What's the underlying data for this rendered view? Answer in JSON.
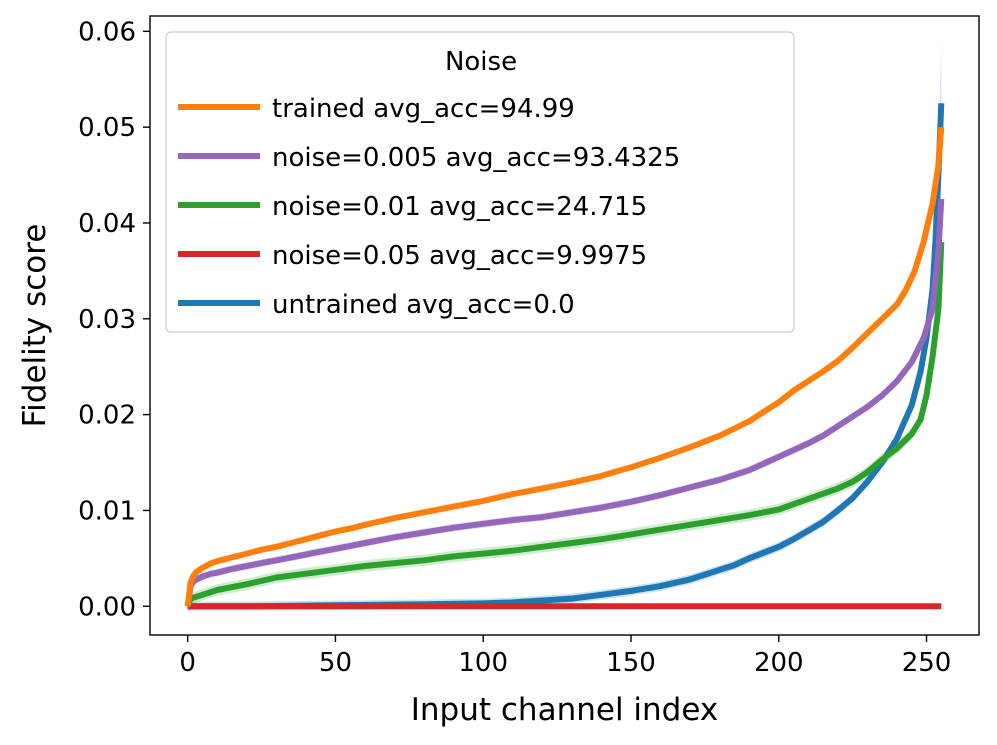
{
  "chart_data": {
    "type": "line",
    "title": "",
    "xlabel": "Input channel index",
    "ylabel": "Fidelity score",
    "xlim": [
      -12.75,
      267.75
    ],
    "ylim": [
      -0.003,
      0.0616
    ],
    "xticks": [
      0,
      50,
      100,
      150,
      200,
      250
    ],
    "xtick_labels": [
      "0",
      "50",
      "100",
      "150",
      "200",
      "250"
    ],
    "yticks": [
      0.0,
      0.01,
      0.02,
      0.03,
      0.04,
      0.05,
      0.06
    ],
    "ytick_labels": [
      "0.00",
      "0.01",
      "0.02",
      "0.03",
      "0.04",
      "0.05",
      "0.06"
    ],
    "grid": false,
    "legend": {
      "title": "Noise",
      "placement": "upper-left"
    },
    "series": [
      {
        "name": "trained avg_acc=94.99",
        "color": "#ff7f0e",
        "x": [
          0,
          1,
          2,
          3,
          5,
          8,
          10,
          15,
          20,
          25,
          30,
          35,
          40,
          45,
          50,
          55,
          60,
          70,
          80,
          90,
          100,
          110,
          115,
          120,
          130,
          140,
          150,
          160,
          170,
          180,
          190,
          195,
          200,
          205,
          210,
          215,
          220,
          225,
          230,
          235,
          240,
          243,
          246,
          249,
          252,
          254,
          255
        ],
        "y": [
          0.0,
          0.0025,
          0.0032,
          0.0036,
          0.004,
          0.0045,
          0.0047,
          0.0051,
          0.0055,
          0.0059,
          0.0062,
          0.0066,
          0.007,
          0.0074,
          0.0078,
          0.0081,
          0.0085,
          0.0092,
          0.0098,
          0.0104,
          0.011,
          0.0117,
          0.012,
          0.0123,
          0.0129,
          0.0136,
          0.0145,
          0.0155,
          0.0166,
          0.0178,
          0.0193,
          0.0203,
          0.0213,
          0.0225,
          0.0235,
          0.0245,
          0.0256,
          0.027,
          0.0285,
          0.03,
          0.0315,
          0.033,
          0.035,
          0.038,
          0.042,
          0.046,
          0.05
        ],
        "band": 0.0003
      },
      {
        "name": "noise=0.005 avg_acc=93.4325",
        "color": "#9467bd",
        "x": [
          0,
          1,
          2,
          3,
          5,
          8,
          10,
          15,
          20,
          25,
          30,
          35,
          40,
          45,
          50,
          55,
          60,
          70,
          80,
          90,
          100,
          110,
          120,
          130,
          140,
          150,
          160,
          170,
          180,
          190,
          200,
          210,
          215,
          220,
          225,
          230,
          235,
          240,
          245,
          249,
          252,
          254,
          255
        ],
        "y": [
          0.0,
          0.0021,
          0.0026,
          0.0028,
          0.0031,
          0.0034,
          0.0035,
          0.0039,
          0.0042,
          0.0045,
          0.0048,
          0.0051,
          0.0054,
          0.0057,
          0.006,
          0.0063,
          0.0066,
          0.0072,
          0.0077,
          0.0082,
          0.0086,
          0.009,
          0.0093,
          0.0098,
          0.0103,
          0.0109,
          0.0116,
          0.0124,
          0.0132,
          0.0142,
          0.0156,
          0.017,
          0.0178,
          0.0188,
          0.0198,
          0.0208,
          0.022,
          0.0235,
          0.0255,
          0.028,
          0.031,
          0.037,
          0.0425
        ],
        "band": 0.0004
      },
      {
        "name": "noise=0.01 avg_acc=24.715",
        "color": "#2ca02c",
        "x": [
          0,
          1,
          3,
          5,
          10,
          20,
          30,
          40,
          50,
          60,
          70,
          80,
          90,
          100,
          110,
          120,
          130,
          140,
          150,
          160,
          170,
          180,
          190,
          200,
          210,
          220,
          225,
          230,
          235,
          240,
          245,
          248,
          250,
          252,
          254,
          255
        ],
        "y": [
          0.0,
          0.0008,
          0.001,
          0.0012,
          0.0017,
          0.0023,
          0.003,
          0.0034,
          0.0038,
          0.0042,
          0.0045,
          0.0048,
          0.0052,
          0.0055,
          0.0058,
          0.0062,
          0.0066,
          0.007,
          0.0075,
          0.008,
          0.0085,
          0.009,
          0.0095,
          0.0101,
          0.0112,
          0.0123,
          0.013,
          0.014,
          0.0153,
          0.0165,
          0.018,
          0.0195,
          0.022,
          0.026,
          0.031,
          0.038
        ],
        "band": 0.0006
      },
      {
        "name": "noise=0.05 avg_acc=9.9975",
        "color": "#d62728",
        "x": [
          0,
          255
        ],
        "y": [
          0.0,
          0.0
        ],
        "band": 0.0
      },
      {
        "name": "untrained avg_acc=0.0",
        "color": "#1f77b4",
        "x": [
          0,
          20,
          50,
          80,
          100,
          110,
          120,
          130,
          140,
          150,
          160,
          170,
          175,
          180,
          185,
          190,
          195,
          200,
          205,
          210,
          215,
          220,
          225,
          230,
          235,
          240,
          245,
          248,
          250,
          252,
          253,
          254,
          255
        ],
        "y": [
          0.0,
          0.0,
          0.0001,
          0.0002,
          0.0003,
          0.0004,
          0.0006,
          0.0008,
          0.0012,
          0.0016,
          0.0021,
          0.0028,
          0.0033,
          0.0038,
          0.0043,
          0.005,
          0.0056,
          0.0062,
          0.007,
          0.0079,
          0.0088,
          0.01,
          0.0113,
          0.013,
          0.015,
          0.0175,
          0.021,
          0.0245,
          0.028,
          0.033,
          0.038,
          0.045,
          0.0525
        ],
        "band": 0.0005,
        "band_end_top": 0.059
      }
    ]
  }
}
